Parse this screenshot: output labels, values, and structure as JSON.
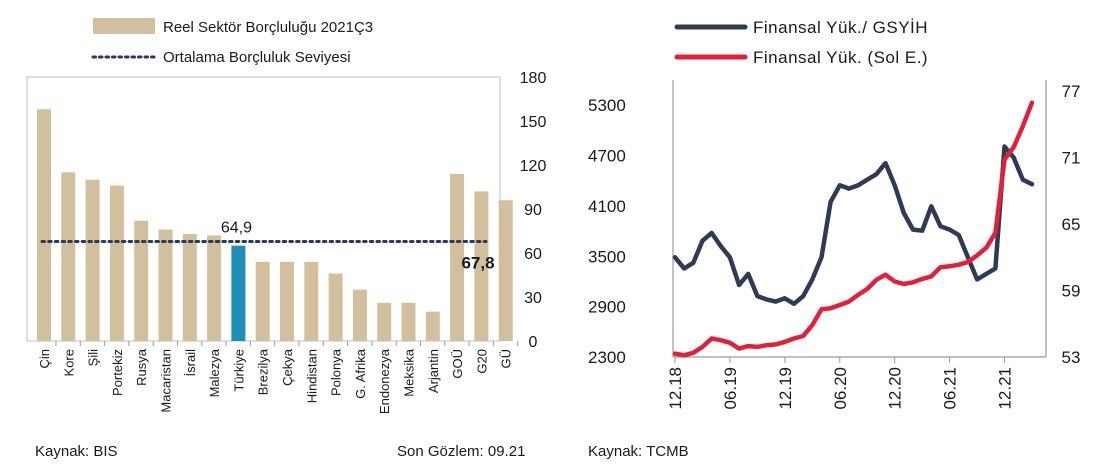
{
  "chart_data": [
    {
      "type": "bar",
      "legend": [
        "Reel Sektör Borçluluğu 2021Ç3",
        "Ortalama Borçluluk Seviyesi"
      ],
      "legend_position": "top-left",
      "categories": [
        "Çin",
        "Kore",
        "Şili",
        "Portekiz",
        "Rusya",
        "Macaristan",
        "İsrail",
        "Malezya",
        "Türkiye",
        "Brezilya",
        "Çekya",
        "Hindistan",
        "Polonya",
        "G. Afrika",
        "Endonezya",
        "Meksika",
        "Arjantin",
        "GOÜ",
        "G20",
        "GÜ"
      ],
      "values": [
        158,
        115,
        110,
        106,
        82,
        76,
        73,
        72,
        65,
        54,
        54,
        54,
        46,
        35,
        26,
        26,
        20,
        114,
        102,
        96
      ],
      "highlight_category": "Türkiye",
      "average_value": 67.8,
      "value_labels": {
        "Türkiye": "64,9",
        "average": "67,8"
      },
      "ylim": [
        0,
        180
      ],
      "yticks": [
        0,
        30,
        60,
        90,
        120,
        150,
        180
      ],
      "ytick_labels": [
        "0",
        "30",
        "60",
        "90",
        "120",
        "150",
        "180"
      ],
      "y_axis_side": "right",
      "colors": {
        "bar": "#d2bf9e",
        "highlight": "#1f8fb5",
        "average": "#2a3a5a"
      }
    },
    {
      "type": "line",
      "legend_position": "top",
      "x_tick_labels": [
        "12.18",
        "06.19",
        "12.19",
        "06.20",
        "12.20",
        "06.21",
        "12.21"
      ],
      "left_axis": {
        "ylim": [
          2300,
          5600
        ],
        "ticks": [
          2300,
          2900,
          3500,
          4100,
          4700,
          5300
        ],
        "tick_labels": [
          "2300",
          "2900",
          "3500",
          "4100",
          "4700",
          "5300"
        ]
      },
      "right_axis": {
        "ylim": [
          53,
          78
        ],
        "ticks": [
          53,
          59,
          65,
          71,
          77
        ],
        "tick_labels": [
          "53",
          "59",
          "65",
          "71",
          "77"
        ]
      },
      "series": [
        {
          "name": "Finansal Yük./ GSYİH",
          "axis": "right",
          "color": "#2f3b55",
          "values": [
            62,
            61,
            61.5,
            63.5,
            64.2,
            63,
            62,
            59.5,
            60.5,
            58.5,
            58.2,
            58,
            58.3,
            57.8,
            58.5,
            60,
            62,
            67,
            68.5,
            68.2,
            68.5,
            69,
            69.5,
            70.5,
            68.5,
            66,
            64.5,
            64.4,
            66.6,
            64.8,
            64.5,
            64,
            62,
            60,
            60.5,
            61,
            72,
            71,
            69,
            68.6
          ]
        },
        {
          "name": "Finansal Yük. (Sol E.)",
          "axis": "left",
          "color": "#e0213b",
          "values": [
            2340,
            2320,
            2350,
            2420,
            2520,
            2500,
            2470,
            2400,
            2430,
            2420,
            2440,
            2450,
            2480,
            2520,
            2550,
            2680,
            2870,
            2880,
            2920,
            2960,
            3040,
            3110,
            3220,
            3280,
            3200,
            3170,
            3190,
            3230,
            3260,
            3370,
            3380,
            3400,
            3430,
            3510,
            3600,
            3780,
            4650,
            4800,
            5050,
            5330
          ]
        }
      ],
      "colors": {
        "axis": "#9a9a9a"
      }
    }
  ],
  "footer": {
    "left_source": "Kaynak: BIS",
    "left_note": "Son Gözlem: 09.21",
    "right_source": "Kaynak: TCMB"
  }
}
